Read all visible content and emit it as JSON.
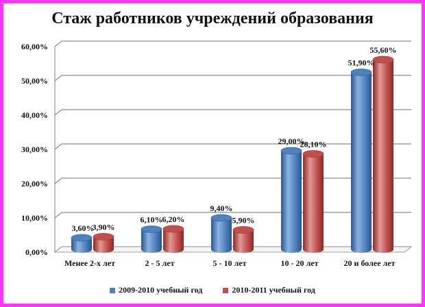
{
  "chart_data": {
    "type": "bar",
    "title": "Стаж работников учреждений образования",
    "categories": [
      "Менее 2-х лет",
      "2 - 5 лет",
      "5 - 10 лет",
      "10 - 20 лет",
      "20 и более лет"
    ],
    "series": [
      {
        "name": "2009-2010 учебный год",
        "color": "#4f81bd",
        "values": [
          3.6,
          6.1,
          9.4,
          29.0,
          51.9
        ],
        "labels": [
          "3,60%",
          "6,10%",
          "9,40%",
          "29,00%",
          "51,90%"
        ]
      },
      {
        "name": "2010-2011 учебный год",
        "color": "#c0504d",
        "values": [
          3.9,
          6.2,
          5.9,
          28.1,
          55.6
        ],
        "labels": [
          "3,90%",
          "6,20%",
          "5,90%",
          "28,10%",
          "55,60%"
        ]
      }
    ],
    "ylim": [
      0,
      60
    ],
    "yticks": [
      "0,00%",
      "10,00%",
      "20,00%",
      "30,00%",
      "40,00%",
      "50,00%",
      "60,00%"
    ],
    "grid": true,
    "legend_position": "bottom",
    "style": "3d-cylinder"
  }
}
